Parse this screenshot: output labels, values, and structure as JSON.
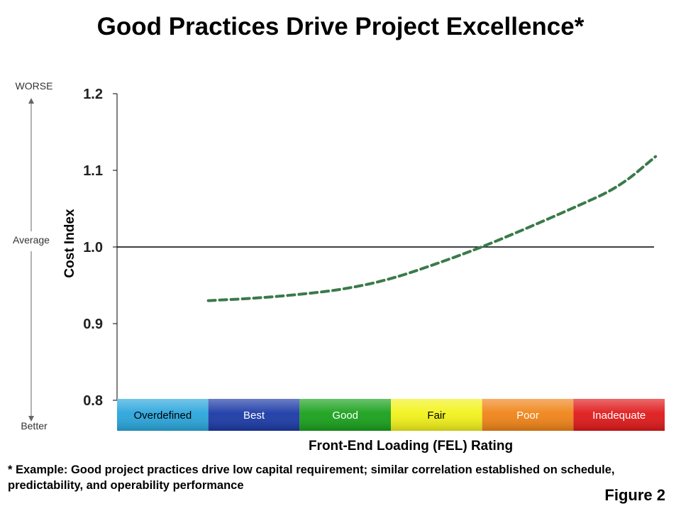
{
  "title": "Good Practices Drive Project Excellence*",
  "footnote": "* Example: Good project practices drive low capital requirement; similar correlation established on schedule, predictability, and operability performance",
  "figure_label": "Figure 2",
  "chart_data": {
    "type": "line",
    "ylabel": "Cost Index",
    "xlabel": "Front-End Loading (FEL) Rating",
    "ylim": [
      0.8,
      1.2
    ],
    "yticks": [
      "1.2",
      "1.1",
      "1.0",
      "0.9",
      "0.8"
    ],
    "ytick_values": [
      1.2,
      1.1,
      1.0,
      0.9,
      0.8
    ],
    "grid": false,
    "reference_line": {
      "y": 1.0
    },
    "side_labels": {
      "top": "WORSE",
      "middle": "Average",
      "bottom": "Better"
    },
    "categories": [
      {
        "label": "Overdefined",
        "color": "#2aa6dc",
        "text_color": "#000000"
      },
      {
        "label": "Best",
        "color": "#1b3aa6",
        "text_color": "#ffffff"
      },
      {
        "label": "Good",
        "color": "#19a11c",
        "text_color": "#ffffff"
      },
      {
        "label": "Fair",
        "color": "#f2f21a",
        "text_color": "#000000"
      },
      {
        "label": "Poor",
        "color": "#f08418",
        "text_color": "#ffffff"
      },
      {
        "label": "Inadequate",
        "color": "#e0191a",
        "text_color": "#ffffff"
      }
    ],
    "series": [
      {
        "style": "dashed",
        "color": "#3a7a4a",
        "x": [
          1.0,
          1.5,
          2.0,
          2.5,
          3.0,
          3.5,
          4.0,
          4.5,
          5.0,
          5.5,
          5.9
        ],
        "y": [
          0.93,
          0.933,
          0.938,
          0.945,
          0.958,
          0.978,
          1.0,
          1.025,
          1.051,
          1.078,
          1.118
        ]
      }
    ]
  }
}
